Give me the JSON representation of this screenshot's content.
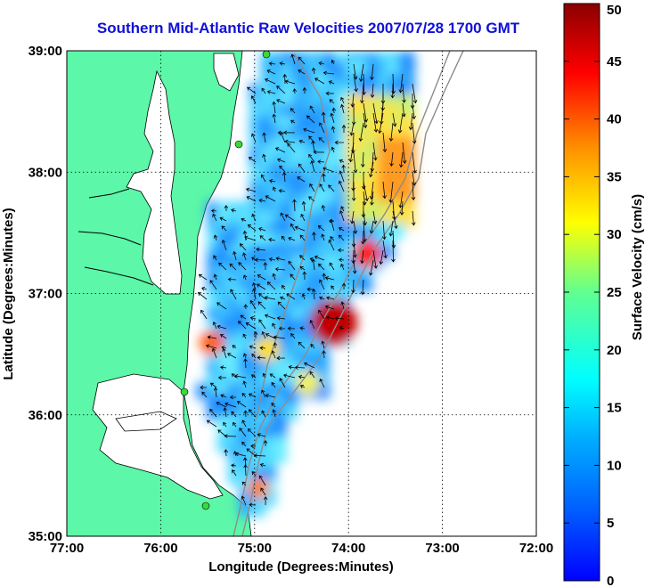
{
  "title": "Southern Mid-Atlantic Raw Velocities 2007/07/28 1700 GMT",
  "map": {
    "x_axis_label": "Longitude (Degrees:Minutes)",
    "y_axis_label": "Latitude (Degrees:Minutes)",
    "lon_range": [
      -77,
      -72
    ],
    "lat_range": [
      35,
      39
    ],
    "x_ticks": [
      {
        "value": -77,
        "label": "77:00"
      },
      {
        "value": -76,
        "label": "76:00"
      },
      {
        "value": -75,
        "label": "75:00"
      },
      {
        "value": -74,
        "label": "74:00"
      },
      {
        "value": -73,
        "label": "73:00"
      },
      {
        "value": -72,
        "label": "72:00"
      }
    ],
    "y_ticks": [
      {
        "value": 39,
        "label": "39:00"
      },
      {
        "value": 38,
        "label": "38:00"
      },
      {
        "value": 37,
        "label": "37:00"
      },
      {
        "value": 36,
        "label": "36:00"
      },
      {
        "value": 35,
        "label": "35:00"
      }
    ],
    "grid": "dotted",
    "land_color": "#5cf7a8",
    "ocean_color": "#ffffff",
    "arrow_color": "#000000",
    "station_color": "#39d939"
  },
  "colorbar": {
    "label": "Surface Velocity (cm/s)",
    "min": 0,
    "max": 50,
    "ticks": [
      "0",
      "5",
      "10",
      "15",
      "20",
      "25",
      "30",
      "35",
      "40",
      "45",
      "50"
    ],
    "colormap": "jet"
  }
}
